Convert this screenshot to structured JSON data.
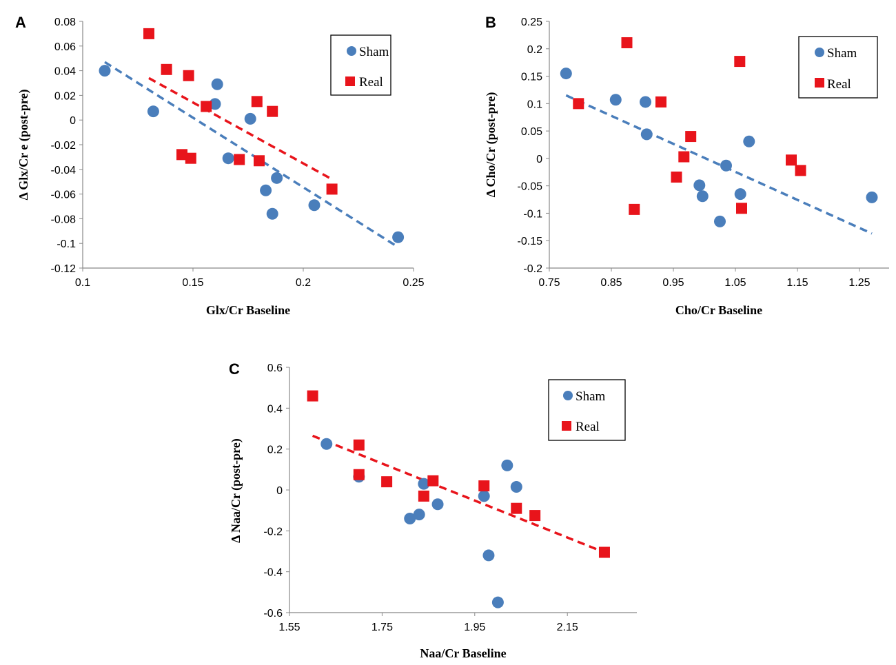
{
  "colors": {
    "sham": "#4a7ebb",
    "real": "#e8141b",
    "trend_sham": "#4a7ebb",
    "trend_real": "#e8141b",
    "axis": "#888888"
  },
  "chart_data": [
    {
      "panel": "A",
      "type": "scatter",
      "xlabel": "Glx/Cr Baseline",
      "ylabel": "Δ Glx/Cr e (post-pre)",
      "xlim": [
        0.1,
        0.25
      ],
      "ylim": [
        -0.12,
        0.08
      ],
      "xticks": [
        0.1,
        0.15,
        0.2,
        0.25
      ],
      "yticks": [
        -0.12,
        -0.1,
        -0.08,
        -0.06,
        -0.04,
        -0.02,
        0,
        0.02,
        0.04,
        0.06,
        0.08
      ],
      "xtick_labels": [
        "0.1",
        "0.15",
        "0.2",
        "0.25"
      ],
      "ytick_labels": [
        "-0.12",
        "-0.1",
        "-0.08",
        "-0.06",
        "-0.04",
        "-0.02",
        "0",
        "0.02",
        "0.04",
        "0.06",
        "0.08"
      ],
      "legend": {
        "position": "top-right",
        "entries": [
          "Sham",
          "Real"
        ]
      },
      "series": [
        {
          "name": "Sham",
          "marker": "circle",
          "x": [
            0.11,
            0.132,
            0.16,
            0.161,
            0.166,
            0.176,
            0.183,
            0.186,
            0.188,
            0.205,
            0.243
          ],
          "y": [
            0.04,
            0.007,
            0.013,
            0.029,
            -0.031,
            0.001,
            -0.057,
            -0.076,
            -0.047,
            -0.069,
            -0.095
          ]
        },
        {
          "name": "Real",
          "marker": "square",
          "x": [
            0.13,
            0.138,
            0.145,
            0.148,
            0.149,
            0.156,
            0.171,
            0.179,
            0.18,
            0.186,
            0.213
          ],
          "y": [
            0.07,
            0.041,
            -0.028,
            0.036,
            -0.031,
            0.011,
            -0.032,
            0.015,
            -0.033,
            0.007,
            -0.056
          ]
        }
      ],
      "trendlines": [
        {
          "series": "Sham",
          "x": [
            0.11,
            0.243
          ],
          "y": [
            0.047,
            -0.103
          ]
        },
        {
          "series": "Real",
          "x": [
            0.13,
            0.213
          ],
          "y": [
            0.034,
            -0.048
          ]
        }
      ]
    },
    {
      "panel": "B",
      "type": "scatter",
      "xlabel": "Cho/Cr Baseline",
      "ylabel": "Δ Cho/Cr (post-pre)",
      "xlim": [
        0.75,
        1.28
      ],
      "ylim": [
        -0.2,
        0.25
      ],
      "xticks": [
        0.75,
        0.85,
        0.95,
        1.05,
        1.15,
        1.25
      ],
      "yticks": [
        -0.2,
        -0.15,
        -0.1,
        -0.05,
        0,
        0.05,
        0.1,
        0.15,
        0.2,
        0.25
      ],
      "xtick_labels": [
        "0.75",
        "0.85",
        "0.95",
        "1.05",
        "1.15",
        "1.25"
      ],
      "ytick_labels": [
        "-0.2",
        "-0.15",
        "-0.1",
        "-0.05",
        "0",
        "0.05",
        "0.1",
        "0.15",
        "0.2",
        "0.25"
      ],
      "legend": {
        "position": "top-right",
        "entries": [
          "Sham",
          "Real"
        ]
      },
      "series": [
        {
          "name": "Sham",
          "marker": "circle",
          "x": [
            0.777,
            0.857,
            0.905,
            0.907,
            0.992,
            0.997,
            1.025,
            1.035,
            1.058,
            1.072,
            1.27
          ],
          "y": [
            0.155,
            0.107,
            0.103,
            0.044,
            -0.049,
            -0.069,
            -0.115,
            -0.013,
            -0.065,
            0.031,
            -0.071
          ]
        },
        {
          "name": "Real",
          "marker": "square",
          "x": [
            0.797,
            0.875,
            0.887,
            0.93,
            0.955,
            0.967,
            0.978,
            1.057,
            1.06,
            1.14,
            1.155
          ],
          "y": [
            0.1,
            0.211,
            -0.093,
            0.103,
            -0.034,
            0.003,
            0.04,
            0.177,
            -0.091,
            -0.003,
            -0.022
          ]
        }
      ],
      "trendlines": [
        {
          "series": "Sham",
          "x": [
            0.777,
            1.27
          ],
          "y": [
            0.115,
            -0.137
          ]
        }
      ]
    },
    {
      "panel": "C",
      "type": "scatter",
      "xlabel": "Naa/Cr Baseline",
      "ylabel": "Δ Naa/Cr (post-pre)",
      "xlim": [
        1.55,
        2.3
      ],
      "ylim": [
        -0.6,
        0.6
      ],
      "xticks": [
        1.55,
        1.75,
        1.95,
        2.15
      ],
      "yticks": [
        -0.6,
        -0.4,
        -0.2,
        0,
        0.2,
        0.4,
        0.6
      ],
      "xtick_labels": [
        "1.55",
        "1.75",
        "1.95",
        "2.15"
      ],
      "ytick_labels": [
        "-0.6",
        "-0.4",
        "-0.2",
        "0",
        "0.2",
        "0.4",
        "0.6"
      ],
      "legend": {
        "position": "top-right",
        "entries": [
          "Sham",
          "Real"
        ]
      },
      "series": [
        {
          "name": "Sham",
          "marker": "circle",
          "x": [
            1.63,
            1.7,
            1.81,
            1.83,
            1.84,
            1.87,
            1.97,
            1.98,
            2.0,
            2.02,
            2.04
          ],
          "y": [
            0.225,
            0.065,
            -0.14,
            -0.12,
            0.03,
            -0.07,
            -0.03,
            -0.32,
            -0.55,
            0.12,
            0.015
          ]
        },
        {
          "name": "Real",
          "marker": "square",
          "x": [
            1.6,
            1.7,
            1.7,
            1.76,
            1.84,
            1.86,
            1.97,
            2.04,
            2.08,
            2.23
          ],
          "y": [
            0.46,
            0.22,
            0.075,
            0.04,
            -0.03,
            0.045,
            0.02,
            -0.09,
            -0.125,
            -0.305
          ]
        }
      ],
      "trendlines": [
        {
          "series": "Real",
          "x": [
            1.6,
            2.23
          ],
          "y": [
            0.265,
            -0.305
          ]
        }
      ]
    }
  ]
}
